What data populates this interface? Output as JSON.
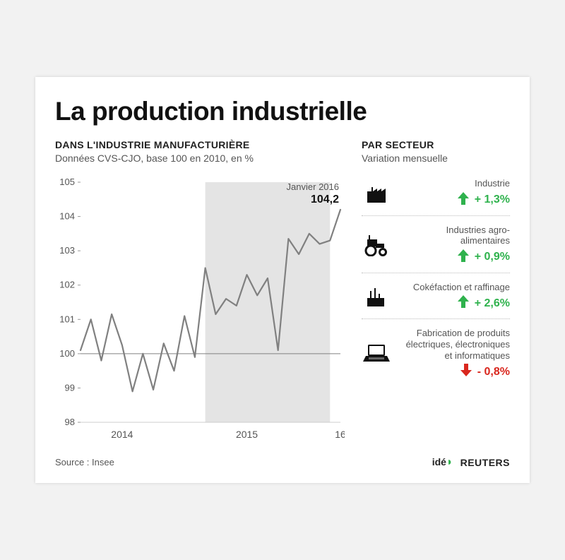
{
  "title": "La production industrielle",
  "left": {
    "heading": "DANS L'INDUSTRIE MANUFACTURIÈRE",
    "sub": "Données CVS-CJO, base 100 en 2010, en %",
    "chart": {
      "type": "line",
      "line_color": "#808080",
      "line_width": 2.2,
      "background_color": "#ffffff",
      "shaded_band_color": "#e4e4e4",
      "baseline_color": "#808080",
      "ylim": [
        98,
        105
      ],
      "yticks": [
        98,
        99,
        100,
        101,
        102,
        103,
        104,
        105
      ],
      "xlim": [
        0,
        25
      ],
      "x_tick_positions": [
        4,
        16,
        25
      ],
      "x_tick_labels": [
        "2014",
        "2015",
        "16"
      ],
      "shaded_x_range": [
        12,
        24
      ],
      "baseline_y": 100,
      "series": [
        {
          "x": 0,
          "y": 100.1
        },
        {
          "x": 1,
          "y": 101.0
        },
        {
          "x": 2,
          "y": 99.8
        },
        {
          "x": 3,
          "y": 101.15
        },
        {
          "x": 4,
          "y": 100.25
        },
        {
          "x": 5,
          "y": 98.9
        },
        {
          "x": 6,
          "y": 100.0
        },
        {
          "x": 7,
          "y": 98.95
        },
        {
          "x": 8,
          "y": 100.3
        },
        {
          "x": 9,
          "y": 99.5
        },
        {
          "x": 10,
          "y": 101.1
        },
        {
          "x": 11,
          "y": 99.9
        },
        {
          "x": 12,
          "y": 102.5
        },
        {
          "x": 13,
          "y": 101.15
        },
        {
          "x": 14,
          "y": 101.6
        },
        {
          "x": 15,
          "y": 101.4
        },
        {
          "x": 16,
          "y": 102.3
        },
        {
          "x": 17,
          "y": 101.7
        },
        {
          "x": 18,
          "y": 102.2
        },
        {
          "x": 19,
          "y": 100.1
        },
        {
          "x": 20,
          "y": 103.35
        },
        {
          "x": 21,
          "y": 102.9
        },
        {
          "x": 22,
          "y": 103.5
        },
        {
          "x": 23,
          "y": 103.2
        },
        {
          "x": 24,
          "y": 103.3
        },
        {
          "x": 25,
          "y": 104.2
        }
      ],
      "annotation": {
        "label_line1": "Janvier 2016",
        "label_line2": "104,2"
      }
    }
  },
  "right": {
    "heading": "PAR SECTEUR",
    "sub": "Variation mensuelle",
    "sectors": [
      {
        "icon": "factory",
        "label": "Industrie",
        "value": "+ 1,3%",
        "direction": "up",
        "color": "#2fb24d"
      },
      {
        "icon": "tractor",
        "label": "Industries agro-alimentaires",
        "value": "+ 0,9%",
        "direction": "up",
        "color": "#2fb24d"
      },
      {
        "icon": "refinery",
        "label": "Cokéfaction et raffinage",
        "value": "+ 2,6%",
        "direction": "up",
        "color": "#2fb24d"
      },
      {
        "icon": "laptop",
        "label": "Fabrication de produits électriques, électroniques et informatiques",
        "value": "- 0,8%",
        "direction": "down",
        "color": "#d9271e"
      }
    ]
  },
  "source_label": "Source : Insee",
  "credits": {
    "ide": "idé",
    "reuters": "REUTERS"
  },
  "colors": {
    "up": "#2fb24d",
    "down": "#d9271e",
    "icon": "#111111"
  }
}
